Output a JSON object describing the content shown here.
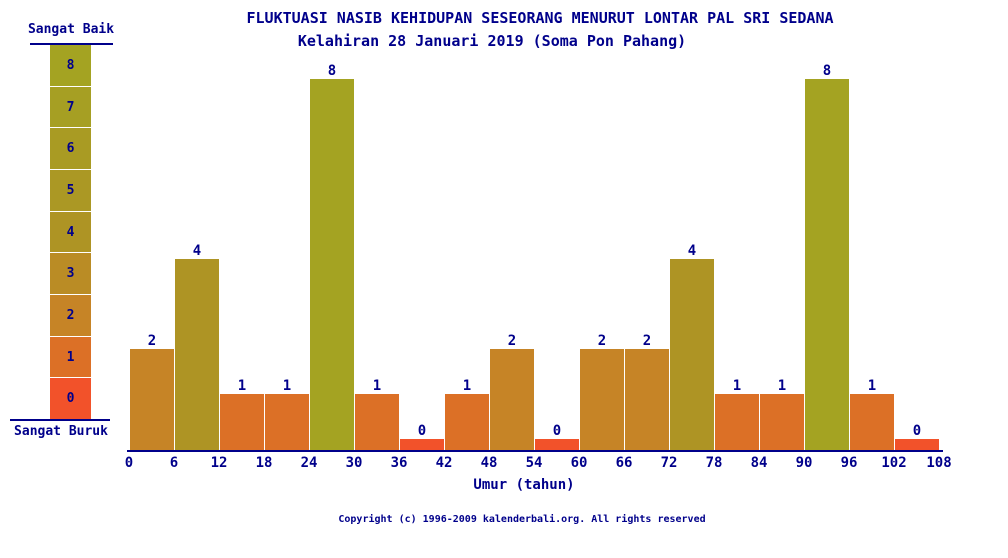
{
  "page": {
    "title_line1": "FLUKTUASI NASIB KEHIDUPAN SESEORANG MENURUT LONTAR PAL SRI SEDANA",
    "title_line2": "Kelahiran 28 Januari 2019 (Soma Pon Pahang)",
    "copyright": "Copyright (c) 1996-2009 kalenderbali.org. All rights reserved"
  },
  "legend": {
    "top_label": "Sangat Baik",
    "bottom_label": "Sangat Buruk",
    "scale": [
      {
        "value": 8,
        "color": "#a4a322"
      },
      {
        "value": 7,
        "color": "#a69f23"
      },
      {
        "value": 6,
        "color": "#a99b23"
      },
      {
        "value": 5,
        "color": "#ab9824"
      },
      {
        "value": 4,
        "color": "#ae9424"
      },
      {
        "value": 3,
        "color": "#ba8c25"
      },
      {
        "value": 2,
        "color": "#c68426"
      },
      {
        "value": 1,
        "color": "#dc7026"
      },
      {
        "value": 0,
        "color": "#f2522a"
      }
    ]
  },
  "chart_data": {
    "type": "bar",
    "title": "FLUKTUASI NASIB KEHIDUPAN SESEORANG MENURUT LONTAR PAL SRI SEDANA",
    "subtitle": "Kelahiran 28 Januari 2019 (Soma Pon Pahang)",
    "xlabel": "Umur (tahun)",
    "ylabel": "",
    "x_tick_labels": [
      0,
      6,
      12,
      18,
      24,
      30,
      36,
      42,
      48,
      54,
      60,
      66,
      72,
      78,
      84,
      90,
      96,
      102,
      108
    ],
    "bin_width_years": 6,
    "categories": [
      "0-6",
      "6-12",
      "12-18",
      "18-24",
      "24-30",
      "30-36",
      "36-42",
      "42-48",
      "48-54",
      "54-60",
      "60-66",
      "66-72",
      "72-78",
      "78-84",
      "84-90",
      "90-96",
      "96-102",
      "102-108"
    ],
    "values": [
      2,
      4,
      1,
      1,
      8,
      1,
      0,
      1,
      2,
      0,
      2,
      2,
      4,
      1,
      1,
      8,
      1,
      0
    ],
    "ylim": [
      0,
      8
    ],
    "grid": false,
    "bar_value_labels_shown": true,
    "legend_position": "left",
    "legend_top_text": "Sangat Baik",
    "legend_bottom_text": "Sangat Buruk"
  },
  "colors": {
    "text": "#00008b",
    "axis": "#00008b",
    "background": "#ffffff"
  }
}
